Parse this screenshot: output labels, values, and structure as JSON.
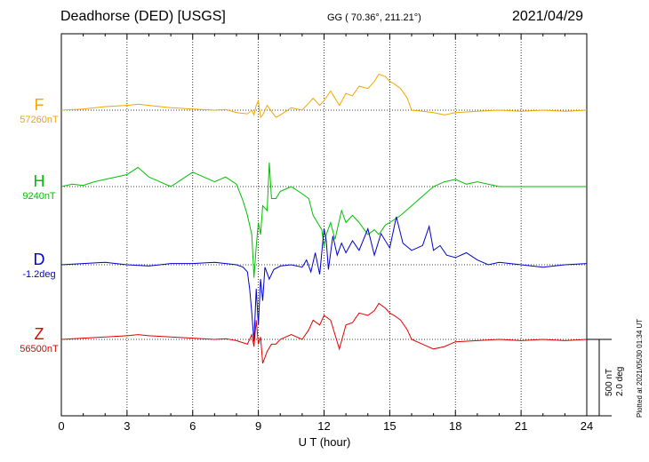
{
  "header": {
    "title": "Deadhorse (DED)  [USGS]",
    "coords": "GG ( 70.36°, 211.21°)",
    "date": "2021/04/29"
  },
  "footer": {
    "plotted": "Plotted at 2021/05/30 01:34  UT",
    "scale_nt": "500 nT",
    "scale_deg": "2.0 deg"
  },
  "chart_data": {
    "type": "line",
    "xlabel": "U T (hour)",
    "xlim": [
      0,
      24
    ],
    "xticks": [
      "0",
      "3",
      "6",
      "9",
      "12",
      "15",
      "18",
      "21",
      "24"
    ],
    "grid": true,
    "series": [
      {
        "name": "F",
        "baseline": "57260nT",
        "color": "#f0a800",
        "x": [
          0,
          1,
          2,
          3,
          3.5,
          4,
          5,
          6,
          7,
          7.5,
          8,
          8.5,
          8.7,
          8.8,
          8.9,
          9,
          9.1,
          9.2,
          9.4,
          9.6,
          9.8,
          10,
          10.5,
          11,
          11.3,
          11.5,
          11.8,
          12,
          12.3,
          12.5,
          12.7,
          13,
          13.3,
          13.6,
          14,
          14.3,
          14.5,
          14.8,
          15,
          15.2,
          15.5,
          15.8,
          16,
          16.5,
          17,
          17.5,
          18,
          19,
          20,
          21,
          22,
          23,
          24
        ],
        "y": [
          0,
          5,
          15,
          20,
          25,
          20,
          10,
          5,
          0,
          3,
          -10,
          -15,
          0,
          -20,
          20,
          40,
          -30,
          -20,
          20,
          -5,
          -30,
          -20,
          10,
          0,
          30,
          50,
          20,
          40,
          80,
          50,
          20,
          70,
          60,
          100,
          90,
          120,
          150,
          140,
          120,
          110,
          90,
          50,
          0,
          -5,
          -10,
          -20,
          -10,
          -5,
          0,
          -5,
          0,
          -5,
          0
        ]
      },
      {
        "name": "H",
        "baseline": "9240nT",
        "color": "#00c000",
        "x": [
          0,
          0.5,
          1,
          1.5,
          2,
          2.5,
          3,
          3.5,
          4,
          4.5,
          5,
          5.5,
          6,
          6.5,
          7,
          7.5,
          8,
          8.3,
          8.5,
          8.7,
          8.8,
          8.9,
          9,
          9.1,
          9.2,
          9.4,
          9.5,
          9.6,
          9.8,
          10,
          10.5,
          11,
          11.3,
          11.5,
          11.7,
          11.9,
          12,
          12.1,
          12.3,
          12.5,
          12.8,
          13,
          13.3,
          13.6,
          14,
          14.3,
          14.5,
          14.8,
          15,
          15.5,
          16,
          16.5,
          17,
          17.5,
          18,
          18.5,
          19,
          20,
          21,
          22,
          23,
          24
        ],
        "y": [
          0,
          10,
          5,
          20,
          30,
          40,
          50,
          80,
          40,
          20,
          0,
          30,
          60,
          40,
          20,
          40,
          10,
          -60,
          -120,
          -200,
          -380,
          -250,
          -150,
          -200,
          -80,
          -100,
          100,
          -50,
          -50,
          -20,
          0,
          -30,
          -50,
          -120,
          -150,
          -180,
          -250,
          -200,
          -150,
          -220,
          -100,
          -150,
          -120,
          -150,
          -200,
          -180,
          -200,
          -160,
          -150,
          -120,
          -80,
          -40,
          0,
          20,
          30,
          10,
          20,
          0,
          0,
          0,
          0,
          0
        ]
      },
      {
        "name": "D",
        "baseline": "-1.2deg",
        "color": "#0000d0",
        "x": [
          0,
          1,
          2,
          3,
          4,
          5,
          6,
          7,
          7.5,
          8,
          8.3,
          8.5,
          8.6,
          8.7,
          8.8,
          8.9,
          9,
          9.1,
          9.2,
          9.3,
          9.5,
          9.7,
          10,
          10.5,
          11,
          11.2,
          11.4,
          11.6,
          11.8,
          12,
          12.1,
          12.2,
          12.4,
          12.6,
          12.8,
          13,
          13.3,
          13.6,
          14,
          14.3,
          14.6,
          15,
          15.3,
          15.6,
          16,
          16.5,
          16.8,
          17,
          17.3,
          17.6,
          18,
          18.5,
          19,
          19.5,
          20,
          21,
          22,
          23,
          24
        ],
        "y": [
          0,
          5,
          10,
          0,
          -5,
          5,
          5,
          10,
          5,
          0,
          -10,
          -30,
          -100,
          -200,
          -320,
          -100,
          -250,
          -60,
          -150,
          -10,
          -60,
          -20,
          -5,
          0,
          -10,
          20,
          -30,
          50,
          -40,
          150,
          100,
          -20,
          120,
          40,
          90,
          50,
          100,
          60,
          150,
          40,
          130,
          70,
          200,
          90,
          60,
          80,
          160,
          60,
          80,
          40,
          30,
          50,
          20,
          0,
          10,
          0,
          -10,
          0,
          5
        ]
      },
      {
        "name": "Z",
        "baseline": "56500nT",
        "color": "#e00000",
        "x": [
          0,
          1,
          2,
          3,
          3.5,
          4,
          5,
          6,
          7,
          7.5,
          8,
          8.5,
          8.7,
          8.8,
          8.9,
          9,
          9.1,
          9.2,
          9.4,
          9.6,
          9.8,
          10,
          10.5,
          11,
          11.3,
          11.5,
          11.8,
          12,
          12.3,
          12.5,
          12.7,
          13,
          13.3,
          13.6,
          14,
          14.3,
          14.5,
          14.8,
          15,
          15.2,
          15.5,
          15.8,
          16,
          16.5,
          17,
          17.5,
          18,
          19,
          20,
          21,
          22,
          23,
          24
        ],
        "y": [
          0,
          5,
          10,
          15,
          20,
          15,
          10,
          5,
          0,
          3,
          -5,
          -20,
          20,
          -30,
          80,
          -20,
          10,
          -100,
          -50,
          -20,
          -20,
          0,
          20,
          0,
          40,
          80,
          60,
          100,
          80,
          20,
          -40,
          60,
          70,
          110,
          100,
          120,
          150,
          130,
          110,
          100,
          80,
          40,
          0,
          -20,
          -40,
          -30,
          -10,
          -5,
          0,
          -5,
          0,
          -5,
          0
        ]
      }
    ]
  }
}
